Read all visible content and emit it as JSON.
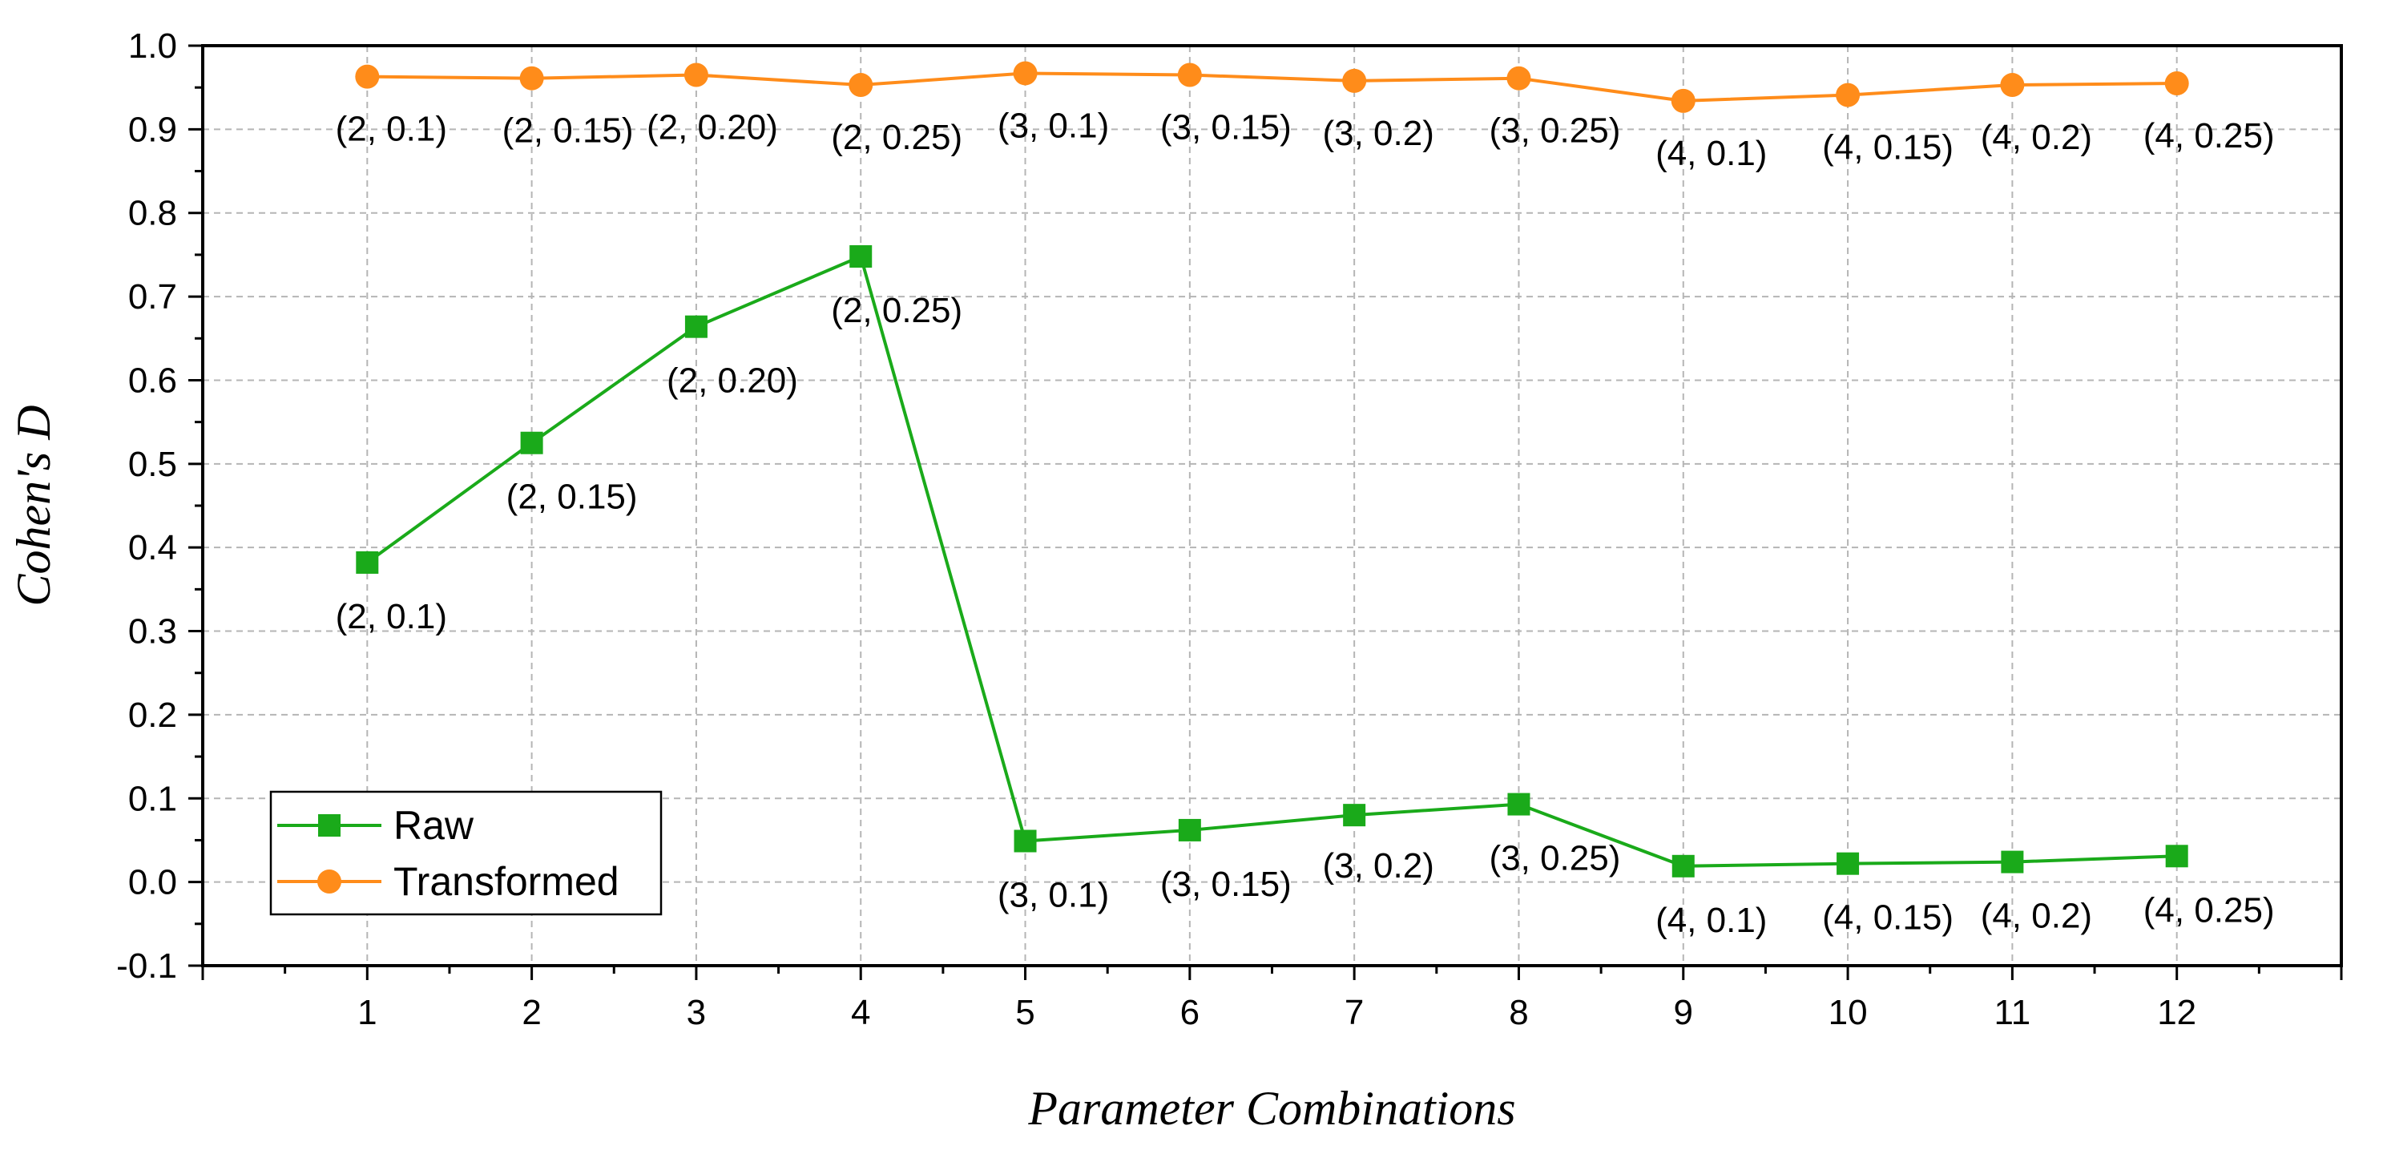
{
  "chart_data": {
    "type": "line",
    "xlabel": "Parameter Combinations",
    "ylabel": "Cohen's D",
    "x": [
      1,
      2,
      3,
      4,
      5,
      6,
      7,
      8,
      9,
      10,
      11,
      12
    ],
    "xlim": [
      0,
      13
    ],
    "ylim": [
      -0.1,
      1.0
    ],
    "yticks": [
      -0.1,
      0.0,
      0.1,
      0.2,
      0.3,
      0.4,
      0.5,
      0.6,
      0.7,
      0.8,
      0.9,
      1.0
    ],
    "ytick_labels": [
      "-0.1",
      "0.0",
      "0.1",
      "0.2",
      "0.3",
      "0.4",
      "0.5",
      "0.6",
      "0.7",
      "0.8",
      "0.9",
      "1.0"
    ],
    "grid": true,
    "legend_position": "bottom-left",
    "series": [
      {
        "name": "Raw",
        "color": "#1aaa1a",
        "marker": "square",
        "values": [
          0.382,
          0.525,
          0.664,
          0.748,
          0.049,
          0.062,
          0.08,
          0.093,
          0.019,
          0.022,
          0.024,
          0.031
        ],
        "labels": [
          "(2, 0.1)",
          "(2, 0.15)",
          "(2, 0.20)",
          "(2, 0.25)",
          "(3, 0.1)",
          "(3, 0.15)",
          "(3, 0.2)",
          "(3, 0.25)",
          "(4, 0.1)",
          "(4, 0.15)",
          "(4, 0.2)",
          "(4, 0.25)"
        ]
      },
      {
        "name": "Transformed",
        "color": "#ff8c1a",
        "marker": "circle",
        "values": [
          0.963,
          0.961,
          0.965,
          0.953,
          0.967,
          0.965,
          0.958,
          0.961,
          0.934,
          0.941,
          0.953,
          0.955
        ],
        "labels": [
          "(2, 0.1)",
          "(2, 0.15)",
          "(2, 0.20)",
          "(2, 0.25)",
          "(3, 0.1)",
          "(3, 0.15)",
          "(3, 0.2)",
          "(3, 0.25)",
          "(4, 0.1)",
          "(4, 0.15)",
          "(4, 0.2)",
          "(4, 0.25)"
        ]
      }
    ]
  }
}
